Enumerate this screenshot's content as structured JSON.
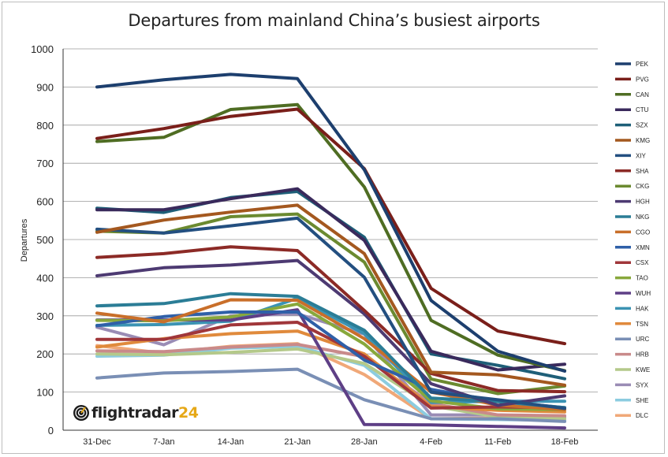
{
  "chart_data": {
    "type": "line",
    "title": "Departures from mainland China’s busiest airports",
    "ylabel": "Departures",
    "xlabel": "",
    "categories": [
      "31-Dec",
      "7-Jan",
      "14-Jan",
      "21-Jan",
      "28-Jan",
      "4-Feb",
      "11-Feb",
      "18-Feb"
    ],
    "ylim": [
      0,
      1000
    ],
    "yticks": [
      0,
      100,
      200,
      300,
      400,
      500,
      600,
      700,
      800,
      900,
      1000
    ],
    "grid": true,
    "legend_position": "right",
    "series": [
      {
        "name": "PEK",
        "color": "#1d3f6e",
        "values": [
          900,
          919,
          933,
          922,
          683,
          340,
          207,
          155
        ]
      },
      {
        "name": "PVG",
        "color": "#7a1f1a",
        "values": [
          765,
          791,
          823,
          842,
          686,
          372,
          260,
          227
        ]
      },
      {
        "name": "CAN",
        "color": "#4f6d23",
        "values": [
          757,
          768,
          841,
          854,
          638,
          288,
          197,
          156
        ]
      },
      {
        "name": "CTU",
        "color": "#3a2a5c",
        "values": [
          578,
          578,
          607,
          633,
          498,
          207,
          158,
          173
        ]
      },
      {
        "name": "SZX",
        "color": "#1e5f78",
        "values": [
          582,
          571,
          610,
          626,
          506,
          200,
          170,
          135
        ]
      },
      {
        "name": "KMG",
        "color": "#a4581f",
        "values": [
          519,
          551,
          572,
          590,
          463,
          152,
          145,
          118
        ]
      },
      {
        "name": "XIY",
        "color": "#234f80",
        "values": [
          527,
          517,
          536,
          556,
          401,
          100,
          80,
          57
        ]
      },
      {
        "name": "SHA",
        "color": "#8c2a26",
        "values": [
          453,
          463,
          481,
          471,
          314,
          149,
          104,
          101
        ]
      },
      {
        "name": "CKG",
        "color": "#6b8a30",
        "values": [
          522,
          517,
          560,
          567,
          441,
          134,
          96,
          116
        ]
      },
      {
        "name": "HGH",
        "color": "#4d3a72",
        "values": [
          405,
          426,
          433,
          445,
          305,
          122,
          65,
          90
        ]
      },
      {
        "name": "NKG",
        "color": "#2b7d96",
        "values": [
          326,
          332,
          358,
          351,
          262,
          84,
          75,
          59
        ]
      },
      {
        "name": "CGO",
        "color": "#c96f2a",
        "values": [
          307,
          284,
          342,
          341,
          240,
          100,
          66,
          54
        ]
      },
      {
        "name": "XMN",
        "color": "#2f60a8",
        "values": [
          274,
          298,
          310,
          310,
          184,
          107,
          76,
          59
        ]
      },
      {
        "name": "CSX",
        "color": "#a0363a",
        "values": [
          238,
          238,
          276,
          283,
          194,
          58,
          61,
          59
        ]
      },
      {
        "name": "TAO",
        "color": "#88a83c",
        "values": [
          288,
          287,
          297,
          331,
          226,
          77,
          56,
          54
        ]
      },
      {
        "name": "WUH",
        "color": "#5e3f86",
        "values": [
          289,
          289,
          289,
          316,
          15,
          14,
          10,
          6
        ]
      },
      {
        "name": "HAK",
        "color": "#3b93b3",
        "values": [
          275,
          277,
          286,
          346,
          253,
          73,
          76,
          76
        ]
      },
      {
        "name": "TSN",
        "color": "#e08a3c",
        "values": [
          218,
          240,
          253,
          260,
          200,
          62,
          52,
          48
        ]
      },
      {
        "name": "URC",
        "color": "#7a8fb5",
        "values": [
          137,
          150,
          154,
          160,
          80,
          30,
          30,
          23
        ]
      },
      {
        "name": "HRB",
        "color": "#c98a8a",
        "values": [
          208,
          206,
          218,
          225,
          193,
          70,
          40,
          38
        ]
      },
      {
        "name": "KWE",
        "color": "#b4c98a",
        "values": [
          200,
          198,
          204,
          213,
          175,
          64,
          35,
          30
        ]
      },
      {
        "name": "SYX",
        "color": "#9a8cb5",
        "values": [
          270,
          224,
          300,
          305,
          252,
          40,
          40,
          35
        ]
      },
      {
        "name": "SHE",
        "color": "#8ccce0",
        "values": [
          194,
          197,
          215,
          220,
          170,
          30,
          28,
          26
        ]
      },
      {
        "name": "DLC",
        "color": "#f0a878",
        "values": [
          222,
          202,
          220,
          227,
          146,
          30,
          32,
          30
        ]
      }
    ]
  },
  "branding": {
    "logo_text": "flightradar",
    "logo_number": "24"
  }
}
